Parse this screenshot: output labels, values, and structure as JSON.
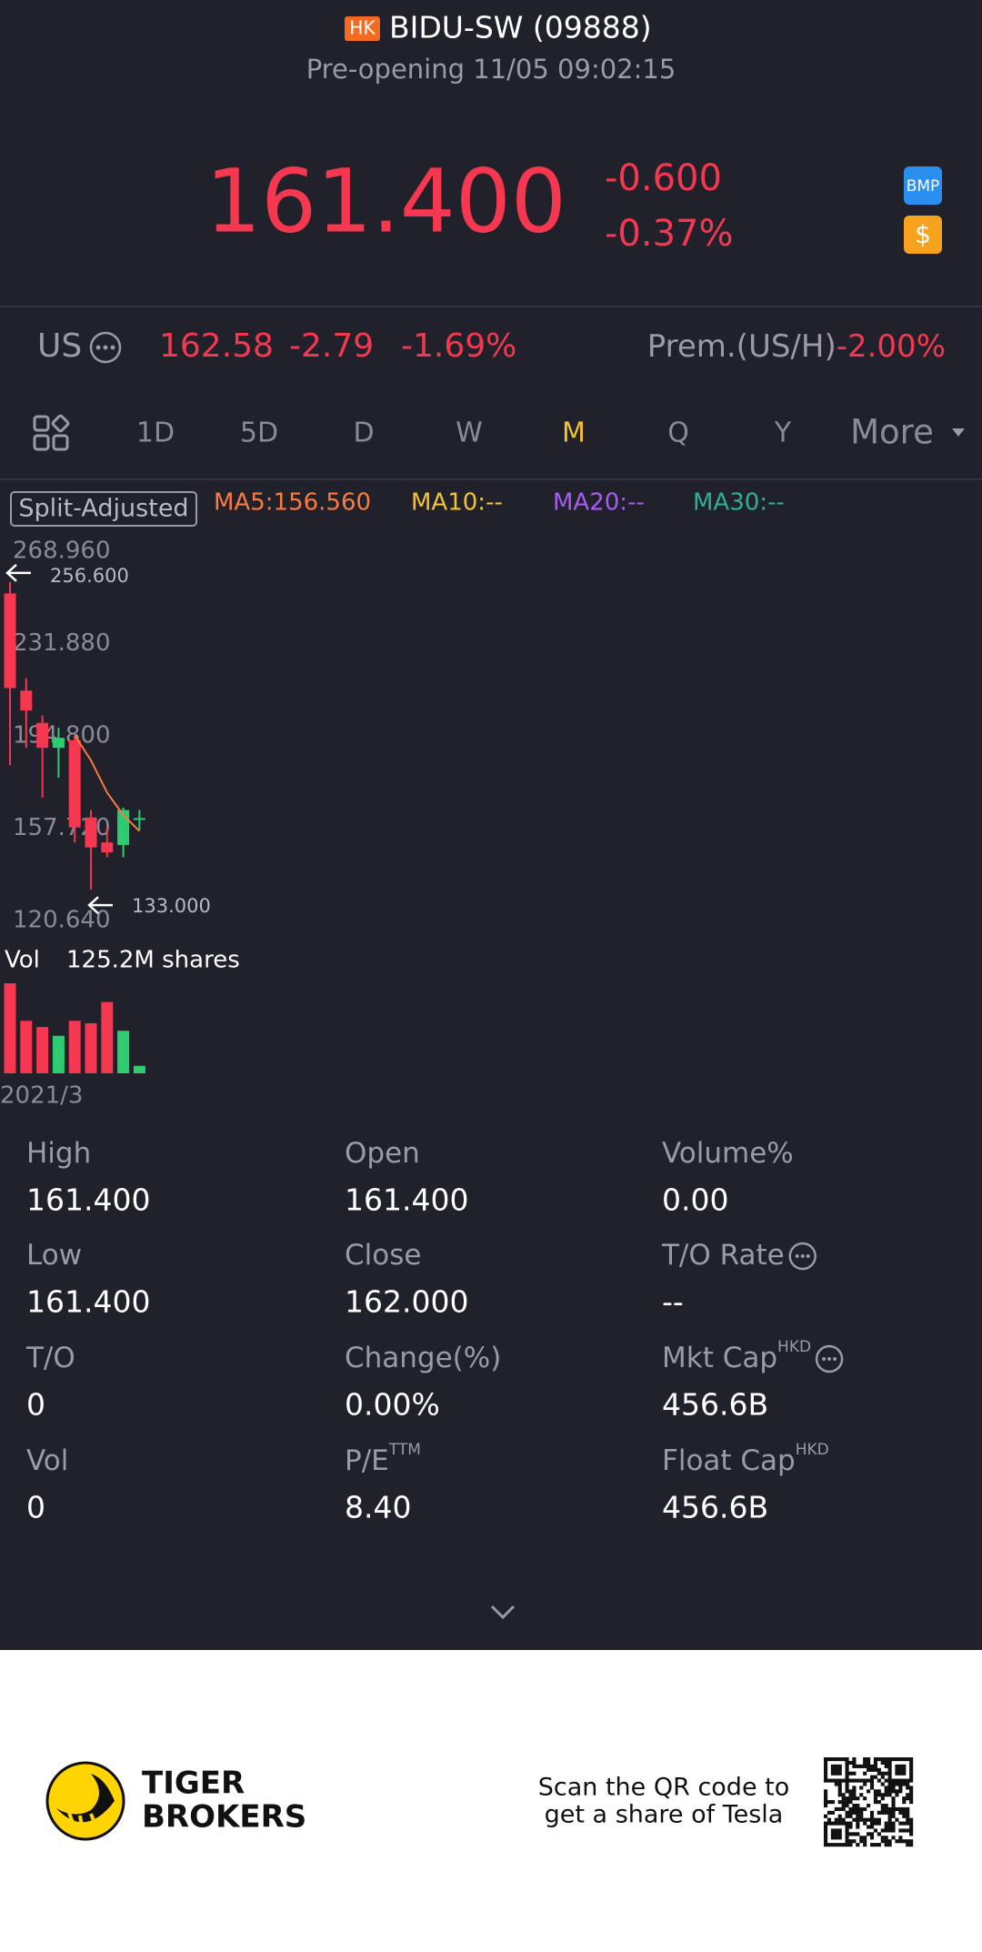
{
  "header": {
    "badge": "HK",
    "title": "BIDU-SW (09888)",
    "status": "Pre-opening 11/05 09:02:15"
  },
  "quote": {
    "price": "161.400",
    "change": "-0.600",
    "change_pct": "-0.37%",
    "icons": [
      "BMP",
      "$"
    ]
  },
  "us_row": {
    "label": "US",
    "price": "162.58",
    "change": "-2.79",
    "change_pct": "-1.69%",
    "premium_label": "Prem.(US/H)",
    "premium": "-2.00%"
  },
  "tabs": {
    "items": [
      "1D",
      "5D",
      "D",
      "W",
      "M",
      "Q",
      "Y",
      "More"
    ],
    "active": 4
  },
  "chart_data": {
    "type": "candlestick",
    "adjust_label": "Split-Adjusted",
    "ma_lines": [
      {
        "label": "MA5:156.560",
        "color": "#ff7a3d",
        "values": [
          null,
          null,
          null,
          null,
          195,
          185,
          172,
          163,
          156.56
        ]
      },
      {
        "label": "MA10:--",
        "color": "#f5c331"
      },
      {
        "label": "MA20:--",
        "color": "#a85cf0"
      },
      {
        "label": "MA30:--",
        "color": "#2fae95"
      }
    ],
    "ylim": [
      120.64,
      268.96
    ],
    "yticks": [
      {
        "value": 268.96,
        "label": "268.960"
      },
      {
        "value": 231.88,
        "label": "231.880"
      },
      {
        "value": 194.8,
        "label": "194.800"
      },
      {
        "value": 157.72,
        "label": "157.720"
      },
      {
        "value": 120.64,
        "label": "120.640"
      }
    ],
    "open": [
      252,
      213,
      200,
      190,
      193,
      162,
      152,
      151,
      161.4
    ],
    "high": [
      256.6,
      218,
      203,
      198,
      195,
      165,
      158,
      166,
      165
    ],
    "low": [
      183,
      190,
      170,
      178,
      152,
      133,
      146,
      146,
      157
    ],
    "close": [
      214,
      205,
      190,
      194,
      158,
      150,
      148,
      165,
      161.4
    ],
    "up_color": "#2ecc71",
    "down_color": "#f5384f",
    "high_marker": {
      "value": 256.6,
      "label": "256.600"
    },
    "low_marker": {
      "value": 133,
      "label": "133.000"
    },
    "volume_label": "Vol",
    "volume_text": "125.2M shares",
    "volumes": [
      720,
      420,
      370,
      300,
      420,
      400,
      570,
      340,
      60
    ],
    "x_label": "2021/3"
  },
  "stats": [
    {
      "label": "High",
      "value": "161.400"
    },
    {
      "label": "Open",
      "value": "161.400"
    },
    {
      "label": "Volume%",
      "value": "0.00"
    },
    {
      "label": "Low",
      "value": "161.400"
    },
    {
      "label": "Close",
      "value": "162.000"
    },
    {
      "label": "T/O Rate",
      "value": "--",
      "info": true
    },
    {
      "label": "T/O",
      "value": "0"
    },
    {
      "label": "Change(%)",
      "value": "0.00%"
    },
    {
      "label": "Mkt Cap",
      "sup": "HKD",
      "value": "456.6B",
      "info": true
    },
    {
      "label": "Vol",
      "value": "0"
    },
    {
      "label": "P/E",
      "sup": "TTM",
      "value": "8.40"
    },
    {
      "label": "Float Cap",
      "sup": "HKD",
      "value": "456.6B"
    }
  ],
  "footer": {
    "brand": [
      "TIGER",
      "BROKERS"
    ],
    "promo": [
      "Scan the QR code to",
      "get a share of Tesla"
    ]
  }
}
